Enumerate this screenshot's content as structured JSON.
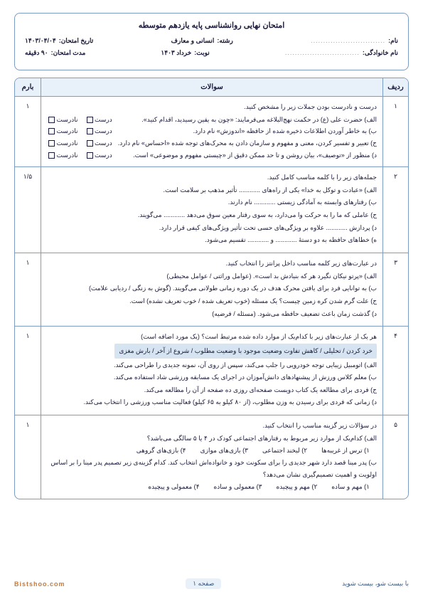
{
  "header": {
    "title": "امتحان نهایی روانشناسی پایه یازدهم متوسطه",
    "row1": {
      "name_label": "نام:",
      "name_dots": "..............................",
      "field_label": "رشته:",
      "field_val": "انسانی و معارف",
      "date_label": "تاریخ امتحان:",
      "date_val": "۱۴۰۳/۰۴/۰۴"
    },
    "row2": {
      "family_label": "نام خانوادگی:",
      "family_dots": "..............................",
      "turn_label": "نوبت:",
      "turn_val": "خرداد ۱۴۰۳",
      "dur_label": "مدت امتحان:",
      "dur_val": "۹۰ دقیقه"
    }
  },
  "table": {
    "head": {
      "num": "ردیف",
      "q": "سوالات",
      "score": "بارم"
    },
    "rows": [
      {
        "num": "۱",
        "score": "۱",
        "intro": "درست و نادرست بودن جملات زیر را مشخص کنید.",
        "tf": [
          "الف) حضرت علی (ع) در حکمت نهج‌البلاغه می‌فرمایند: «چون به یقین رسیدید، اقدام کنید».",
          "ب) به خاطر آوردن اطلاعات ذخیره شده از حافظه «اندوزش» نام دارد.",
          "ج) تعبیر و تفسیر کردن، معنی و مفهوم و سازمان دادن به محرک‌های توجه شده «احساس» نام دارد.",
          "د) منظور از «توصیف»، بیان روشن و تا حد ممکن دقیق از «چیستی مفهوم و موضوعی» است."
        ],
        "tf_labels": {
          "t": "درست",
          "f": "نادرست"
        }
      },
      {
        "num": "۲",
        "score": "۱/۵",
        "intro": "جمله‌های زیر را با کلمه مناسب کامل کنید.",
        "lines": [
          "الف) «عبادت و توکل به خدا» یکی از راه‌های ............ تأثیر مذهب بر سلامت است.",
          "ب) رفتارهای وابسته به آمادگی زیستی ............ نام دارند.",
          "ج) عاملی که ما را به حرکت وا می‌دارد، به سوی رفتار معین سوق می‌دهد ............ می‌گویند.",
          "د) پردازش ............ علاوه بر ویژگی‌های حسی تحت تأثیر ویژگی‌های کیفی قرار دارد.",
          "ه) خطاهای حافظه به دو دستهٔ ............ و ............ تقسیم می‌شود."
        ]
      },
      {
        "num": "۳",
        "score": "۱",
        "intro": "در عبارت‌های زیر کلمه مناسب داخل پرانتز را انتخاب کنید.",
        "lines": [
          "الف) «پرتو نیکان نگیرد هر که بنیادش بد است». (عوامل وراثتی / عوامل محیطی)",
          "ب) به توانایی فرد برای یافتن محرک هدف در یک دوره زمانی طولانی می‌گویند. (گوش به زنگی / ردیابی علامت)",
          "ج) علت گرم شدن کره زمین چیست؟ یک مسئله (خوب تعریف شده / خوب تعریف نشده) است.",
          "د) گذشت زمان باعث تضعیف حافظه می‌شود. (مسئله / فرضیه)"
        ]
      },
      {
        "num": "۴",
        "score": "۱",
        "intro": "هر یک از عبارت‌های زیر با کدام‌یک از موارد داده شده مرتبط است؟ (یک مورد اضافه است)",
        "highlight": "خرد کردن / تحلیلی / کاهش تفاوت وضعیت موجود با وضعیت مطلوب / شروع از آخر / بارش مغزی",
        "lines": [
          "الف) اتومبیل زیبایی توجه خودرویی را جلب می‌کند، سپس از روی آن، نمونه جدیدی را طراحی می‌کند.",
          "ب) معلم کلاس ورزش از پیشنهادهای دانش‌آموزان در اجرای یک مسابقه ورزشی شاد استفاده می‌کند.",
          "ج) فردی برای مطالعه یک کتاب دویست صفحه‌ای روزی ده صفحه از آن را مطالعه می‌کند.",
          "د) زمانی که فردی برای رسیدن به وزن مطلوب، (از ۸۰ کیلو به ۶۵ کیلو) فعالیت مناسب ورزشی را انتخاب می‌کند."
        ]
      },
      {
        "num": "۵",
        "score": "۱",
        "intro": "در سؤالات زیر گزینه مناسب را انتخاب کنید.",
        "mc": [
          {
            "q": "الف) کدام‌یک از موارد زیر مربوط به رفتارهای اجتماعی کودک در ۴ یا ۵ سالگی می‌باشد؟",
            "opts": [
              "۱) ترس از غریبه‌ها",
              "۲) لبخند اجتماعی",
              "۳) بازی‌های موازی",
              "۴) بازی‌های گروهی"
            ]
          },
          {
            "q": "ب) پدر مینا قصد دارد شهر جدیدی را برای سکونت خود و خانواده‌اش انتخاب کند. کدام گزینه‌ی زیر تصمیم پدر مینا را بر اساس اولویت و اهمیت تصمیم‌گیری نشان می‌دهد؟",
            "opts": [
              "۱) مهم و ساده",
              "۲) مهم و پیچیده",
              "۳) معمولی و ساده",
              "۴) معمولی و پیچیده"
            ]
          }
        ]
      }
    ]
  },
  "footer": {
    "tag": "با بیست شو، بیست شوید",
    "page": "صفحه ۱",
    "brand": "Bistshoo.com"
  }
}
